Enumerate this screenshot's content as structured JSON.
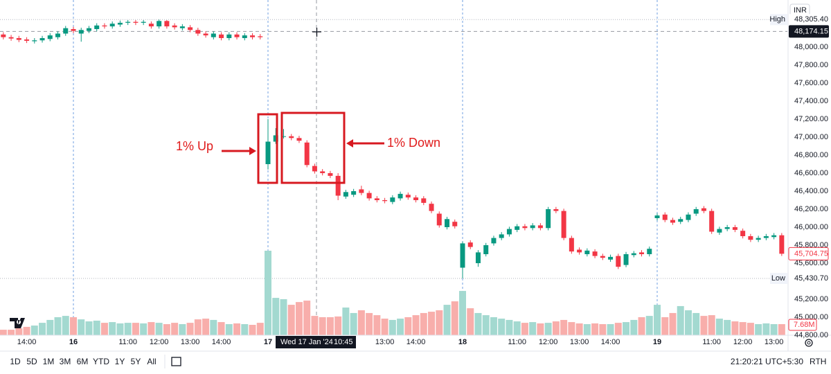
{
  "chart_data": {
    "type": "candlestick",
    "currency": "INR",
    "categories": [
      null,
      null,
      null,
      "14:00",
      null,
      null,
      null,
      null,
      null,
      "16",
      null,
      null,
      null,
      null,
      null,
      null,
      "11:00",
      null,
      null,
      null,
      "12:00",
      null,
      null,
      null,
      "13:00",
      null,
      null,
      null,
      "14:00",
      null,
      null,
      null,
      null,
      null,
      "17",
      null,
      null,
      null,
      null,
      null,
      null,
      null,
      null,
      null,
      null,
      null,
      null,
      null,
      null,
      "13:00",
      null,
      null,
      null,
      "14:00",
      null,
      null,
      null,
      null,
      null,
      "18",
      null,
      null,
      null,
      null,
      null,
      null,
      "11:00",
      null,
      null,
      null,
      "12:00",
      null,
      null,
      null,
      "13:00",
      null,
      null,
      null,
      "14:00",
      null,
      null,
      null,
      null,
      null,
      "19",
      null,
      null,
      null,
      null,
      null,
      null,
      "11:00",
      null,
      null,
      null,
      "12:00",
      null,
      null,
      null,
      "13:00",
      null
    ],
    "open": [
      48140,
      48110,
      48100,
      48085,
      48065,
      48075,
      48090,
      48110,
      48150,
      48200,
      48150,
      48180,
      48200,
      48240,
      48230,
      48250,
      48270,
      48280,
      48270,
      48260,
      48230,
      48290,
      48240,
      48210,
      48220,
      48190,
      48150,
      48110,
      48140,
      48100,
      48140,
      48100,
      48130,
      48120,
      46700,
      46950,
      47010,
      47010,
      46990,
      46940,
      46680,
      46620,
      46600,
      46570,
      46340,
      46360,
      46420,
      46380,
      46320,
      46300,
      46280,
      46320,
      46360,
      46330,
      46320,
      46260,
      46150,
      46000,
      46060,
      45550,
      45830,
      45600,
      45700,
      45820,
      45880,
      45920,
      45970,
      46010,
      45990,
      46020,
      45990,
      46200,
      46180,
      45880,
      45750,
      45700,
      45730,
      45680,
      45640,
      45680,
      45580,
      45690,
      45720,
      45700,
      46100,
      46140,
      46080,
      46060,
      46080,
      46150,
      46210,
      46180,
      45940,
      45980,
      46000,
      45960,
      45900,
      45860,
      45880,
      45890,
      45910
    ],
    "high": [
      48165,
      48135,
      48125,
      48110,
      48100,
      48125,
      48155,
      48175,
      48235,
      48225,
      48215,
      48235,
      48265,
      48265,
      48285,
      48295,
      48300,
      48300,
      48300,
      48285,
      48305.4,
      48300,
      48265,
      48255,
      48245,
      48215,
      48175,
      48175,
      48165,
      48165,
      48165,
      48155,
      48155,
      48145,
      47200,
      47100,
      47090,
      47035,
      47015,
      46965,
      46705,
      46645,
      46625,
      46600,
      46415,
      46425,
      46460,
      46405,
      46345,
      46325,
      46355,
      46395,
      46385,
      46355,
      46345,
      46285,
      46175,
      46115,
      46085,
      45840,
      45855,
      45745,
      45825,
      45905,
      45945,
      46005,
      46035,
      46035,
      46045,
      46045,
      46225,
      46225,
      46205,
      45905,
      45775,
      45765,
      45755,
      45705,
      45695,
      45705,
      45725,
      45735,
      45745,
      45785,
      46155,
      46165,
      46105,
      46115,
      46165,
      46225,
      46235,
      46205,
      46005,
      46025,
      46025,
      45985,
      45925,
      45905,
      45925,
      45935,
      45935
    ],
    "low": [
      48085,
      48070,
      48055,
      48045,
      48040,
      48050,
      48065,
      48085,
      48125,
      48155,
      48060,
      48155,
      48175,
      48205,
      48205,
      48225,
      48245,
      48245,
      48245,
      48205,
      48205,
      48205,
      48195,
      48185,
      48165,
      48125,
      48105,
      48085,
      48075,
      48075,
      48085,
      48075,
      48085,
      48085,
      46640,
      46925,
      46985,
      46965,
      46935,
      46665,
      46595,
      46575,
      46545,
      46300,
      46315,
      46335,
      46355,
      46295,
      46275,
      46265,
      46255,
      46295,
      46305,
      46275,
      46245,
      46155,
      45995,
      45975,
      45985,
      45430.7,
      45755,
      45560,
      45675,
      45795,
      45855,
      45895,
      45945,
      45965,
      45965,
      45965,
      45965,
      46155,
      45855,
      45705,
      45695,
      45675,
      45655,
      45635,
      45615,
      45535,
      45555,
      45665,
      45675,
      45675,
      46075,
      46055,
      46025,
      46035,
      46055,
      46125,
      46155,
      45925,
      45915,
      45955,
      45945,
      45875,
      45835,
      45835,
      45855,
      45865,
      45680
    ],
    "close": [
      48110,
      48095,
      48080,
      48070,
      48075,
      48100,
      48130,
      48150,
      48210,
      48180,
      48190,
      48210,
      48240,
      48230,
      48260,
      48270,
      48280,
      48270,
      48280,
      48230,
      48290,
      48230,
      48220,
      48230,
      48190,
      48150,
      48130,
      48150,
      48100,
      48140,
      48110,
      48130,
      48110,
      48110,
      46950,
      47020,
      47010,
      46990,
      46960,
      46690,
      46620,
      46600,
      46570,
      46350,
      46390,
      46400,
      46380,
      46320,
      46300,
      46290,
      46330,
      46370,
      46330,
      46300,
      46270,
      46180,
      46020,
      46090,
      46010,
      45820,
      45780,
      45720,
      45800,
      45880,
      45920,
      45980,
      46010,
      45990,
      46020,
      45990,
      46200,
      46180,
      45880,
      45730,
      45720,
      45740,
      45680,
      45660,
      45670,
      45560,
      45700,
      45710,
      45700,
      45760,
      46130,
      46080,
      46050,
      46090,
      46140,
      46200,
      46180,
      45950,
      45980,
      46000,
      45970,
      45900,
      45860,
      45880,
      45900,
      45910,
      45704.75
    ],
    "volume": {
      "values": [
        3.8,
        3.8,
        4.8,
        5.8,
        6.7,
        8.6,
        10.6,
        12.5,
        13.4,
        12.5,
        11,
        9.6,
        10.1,
        8.6,
        9.1,
        8.2,
        8.6,
        8.6,
        8.2,
        9.1,
        8.6,
        7.7,
        8.6,
        7.7,
        8.6,
        11,
        11.5,
        10.6,
        9.1,
        7.7,
        8.2,
        7.7,
        7.2,
        8.6,
        58.6,
        25.9,
        25,
        21.1,
        23,
        24,
        13.4,
        12.5,
        12.5,
        13,
        19.2,
        15.4,
        17.3,
        15.4,
        13.9,
        11.5,
        10.6,
        11.5,
        12.5,
        13.9,
        15.4,
        16.3,
        17.3,
        21.1,
        23.5,
        30.7,
        18.7,
        15.4,
        13.9,
        12.5,
        11.5,
        10.6,
        9.6,
        8.6,
        9.1,
        8.2,
        8.6,
        9.6,
        10.6,
        9.1,
        8.2,
        7.7,
        8.2,
        7.7,
        7.7,
        8.6,
        9.1,
        10.6,
        12.5,
        13.4,
        21.1,
        12.5,
        15.4,
        20.2,
        17.3,
        15.4,
        13.4,
        13.9,
        11.5,
        10.6,
        9.6,
        9.1,
        8.6,
        7.7,
        8.2,
        7.7,
        7.68
      ],
      "last_label": "7.68M",
      "up_color": "#a3d9d0",
      "down_color": "#f8aeab"
    },
    "up_color": "#089981",
    "down_color": "#f23645",
    "ylim": [
      44800,
      48523
    ],
    "yticks": [
      {
        "value": 44800,
        "label": "44,800.00"
      },
      {
        "value": 45000,
        "label": "45,000.00"
      },
      {
        "value": 45200,
        "label": "45,200.00"
      },
      {
        "value": 45600,
        "label": "45,600.00"
      },
      {
        "value": 45800,
        "label": "45,800.00"
      },
      {
        "value": 46000,
        "label": "46,000.00"
      },
      {
        "value": 46200,
        "label": "46,200.00"
      },
      {
        "value": 46400,
        "label": "46,400.00"
      },
      {
        "value": 46600,
        "label": "46,600.00"
      },
      {
        "value": 46800,
        "label": "46,800.00"
      },
      {
        "value": 47000,
        "label": "47,000.00"
      },
      {
        "value": 47200,
        "label": "47,200.00"
      },
      {
        "value": 47400,
        "label": "47,400.00"
      },
      {
        "value": 47600,
        "label": "47,600.00"
      },
      {
        "value": 47800,
        "label": "47,800.00"
      },
      {
        "value": 48000,
        "label": "48,000.00"
      }
    ],
    "grid": false,
    "high_marker": {
      "name": "High",
      "value": 48305.4,
      "label": "48,305.40"
    },
    "low_marker": {
      "name": "Low",
      "value": 45430.7,
      "label": "45,430.70"
    },
    "last_price": {
      "value": 45704.75,
      "label": "45,704.75"
    },
    "crosshair": {
      "value": 48174.15,
      "label": "48,174.15",
      "date": "Wed 17 Jan '24",
      "time": "10:45"
    },
    "annotations": [
      "1% Up",
      "1% Down"
    ]
  },
  "toolbar": {
    "ranges": [
      "1D",
      "5D",
      "1M",
      "3M",
      "6M",
      "YTD",
      "1Y",
      "5Y",
      "All"
    ],
    "clock": "21:20:21 UTC+5:30",
    "session": "RTH"
  }
}
